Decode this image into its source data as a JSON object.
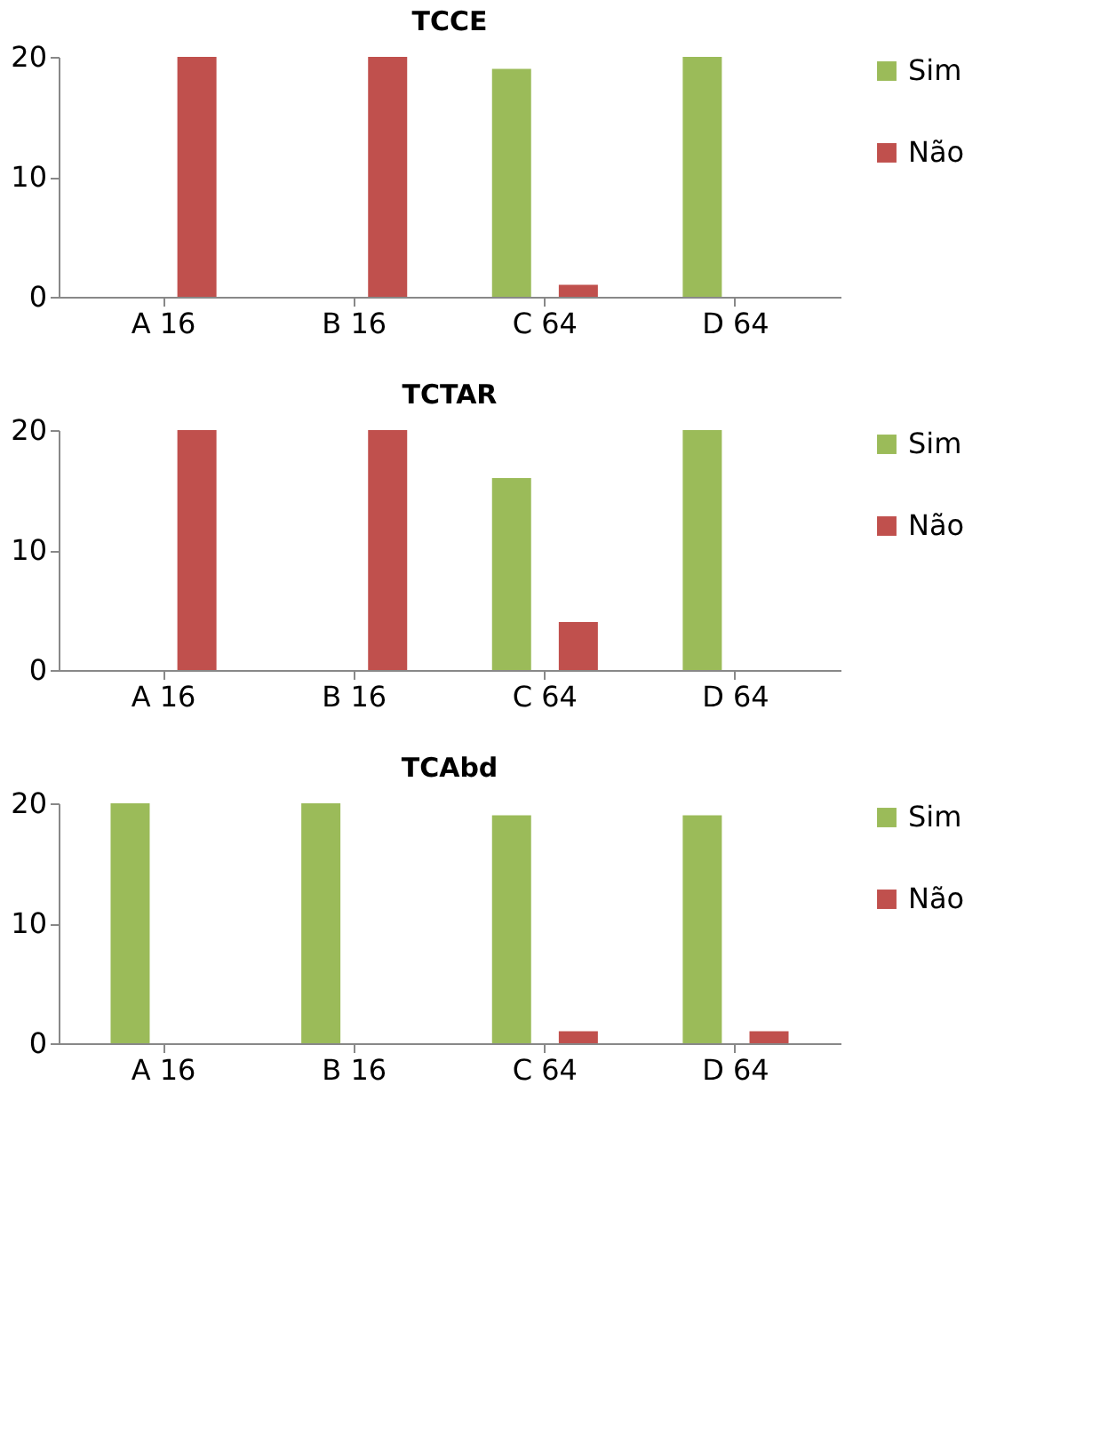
{
  "chart_data": [
    {
      "type": "bar",
      "title": "TCCE",
      "categories": [
        "A 16",
        "B 16",
        "C 64",
        "D 64"
      ],
      "series": [
        {
          "name": "Sim",
          "color": "#9bbb59",
          "values": [
            0,
            0,
            19,
            20
          ]
        },
        {
          "name": "Não",
          "color": "#c0504d",
          "values": [
            20,
            20,
            1,
            0
          ]
        }
      ],
      "ylim": [
        0,
        20
      ],
      "yticks": [
        0,
        10,
        20
      ],
      "grid": false,
      "legend": "right"
    },
    {
      "type": "bar",
      "title": "TCTAR",
      "categories": [
        "A 16",
        "B 16",
        "C 64",
        "D 64"
      ],
      "series": [
        {
          "name": "Sim",
          "color": "#9bbb59",
          "values": [
            0,
            0,
            16,
            20
          ]
        },
        {
          "name": "Não",
          "color": "#c0504d",
          "values": [
            20,
            20,
            4,
            0
          ]
        }
      ],
      "ylim": [
        0,
        20
      ],
      "yticks": [
        0,
        10,
        20
      ],
      "grid": false,
      "legend": "right"
    },
    {
      "type": "bar",
      "title": "TCAbd",
      "categories": [
        "A 16",
        "B 16",
        "C 64",
        "D 64"
      ],
      "series": [
        {
          "name": "Sim",
          "color": "#9bbb59",
          "values": [
            20,
            20,
            19,
            19
          ]
        },
        {
          "name": "Não",
          "color": "#c0504d",
          "values": [
            0,
            0,
            1,
            1
          ]
        }
      ],
      "ylim": [
        0,
        20
      ],
      "yticks": [
        0,
        10,
        20
      ],
      "grid": false,
      "legend": "right"
    }
  ]
}
